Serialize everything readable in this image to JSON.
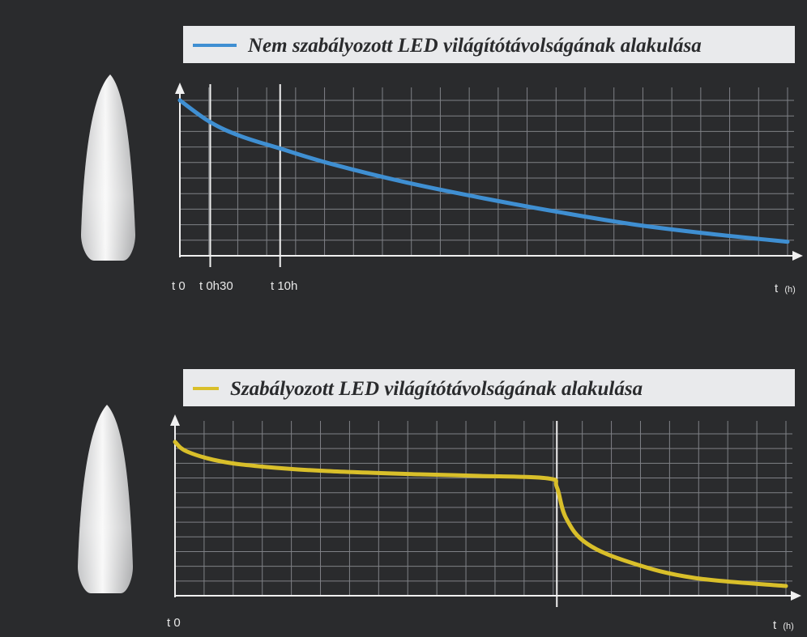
{
  "colors": {
    "background": "#2a2b2d",
    "grid": "#7f8186",
    "axis": "#f0f0f0",
    "legend_box": "#e9eaec",
    "blue": "#3f8fd2",
    "yellow": "#d9bf2a"
  },
  "chart_data": [
    {
      "type": "line",
      "title": "",
      "legend": {
        "placement": "top",
        "entries": [
          {
            "label": "Nem szabályozott LED világítótávolságának alakulása",
            "color": "#3f8fd2"
          }
        ]
      },
      "xlabel": "t (h)",
      "ylabel": "",
      "xlim": [
        0,
        20
      ],
      "ylim": [
        0,
        10
      ],
      "grid": true,
      "x_markers": [
        {
          "label": "t 0",
          "x": 0
        },
        {
          "label": "t 0h30",
          "x": 1
        },
        {
          "label": "t 10h",
          "x": 3.3
        }
      ],
      "axis_end_label": {
        "prefix": "t",
        "unit": "(h)"
      },
      "series": [
        {
          "name": "Nem szabályozott LED világítótávolságának alakulása",
          "x": [
            0,
            1,
            2,
            3.3,
            5,
            7.5,
            10,
            12.5,
            15,
            17.5,
            20
          ],
          "y": [
            10,
            8.6,
            7.7,
            6.9,
            5.9,
            4.7,
            3.7,
            2.8,
            2.0,
            1.4,
            0.9
          ]
        }
      ]
    },
    {
      "type": "line",
      "title": "",
      "legend": {
        "placement": "top",
        "entries": [
          {
            "label": "Szabályozott LED világítótávolságának alakulása",
            "color": "#d9bf2a"
          }
        ]
      },
      "xlabel": "t (h)",
      "ylabel": "",
      "xlim": [
        0,
        20
      ],
      "ylim": [
        0,
        10
      ],
      "grid": true,
      "x_markers": [
        {
          "label": "t 0",
          "x": 0
        },
        {
          "label": "",
          "x": 12.5
        }
      ],
      "axis_end_label": {
        "prefix": "t",
        "unit": "(h)"
      },
      "series": [
        {
          "name": "Szabályozott LED világítótávolságának alakulása",
          "x": [
            0,
            0.4,
            1.5,
            3,
            5,
            8,
            10,
            12.2,
            12.5,
            12.8,
            13.5,
            15,
            17,
            20
          ],
          "y": [
            9.5,
            8.9,
            8.3,
            7.95,
            7.7,
            7.5,
            7.4,
            7.25,
            6.7,
            4.8,
            3.2,
            2.0,
            1.1,
            0.6
          ]
        }
      ]
    }
  ]
}
